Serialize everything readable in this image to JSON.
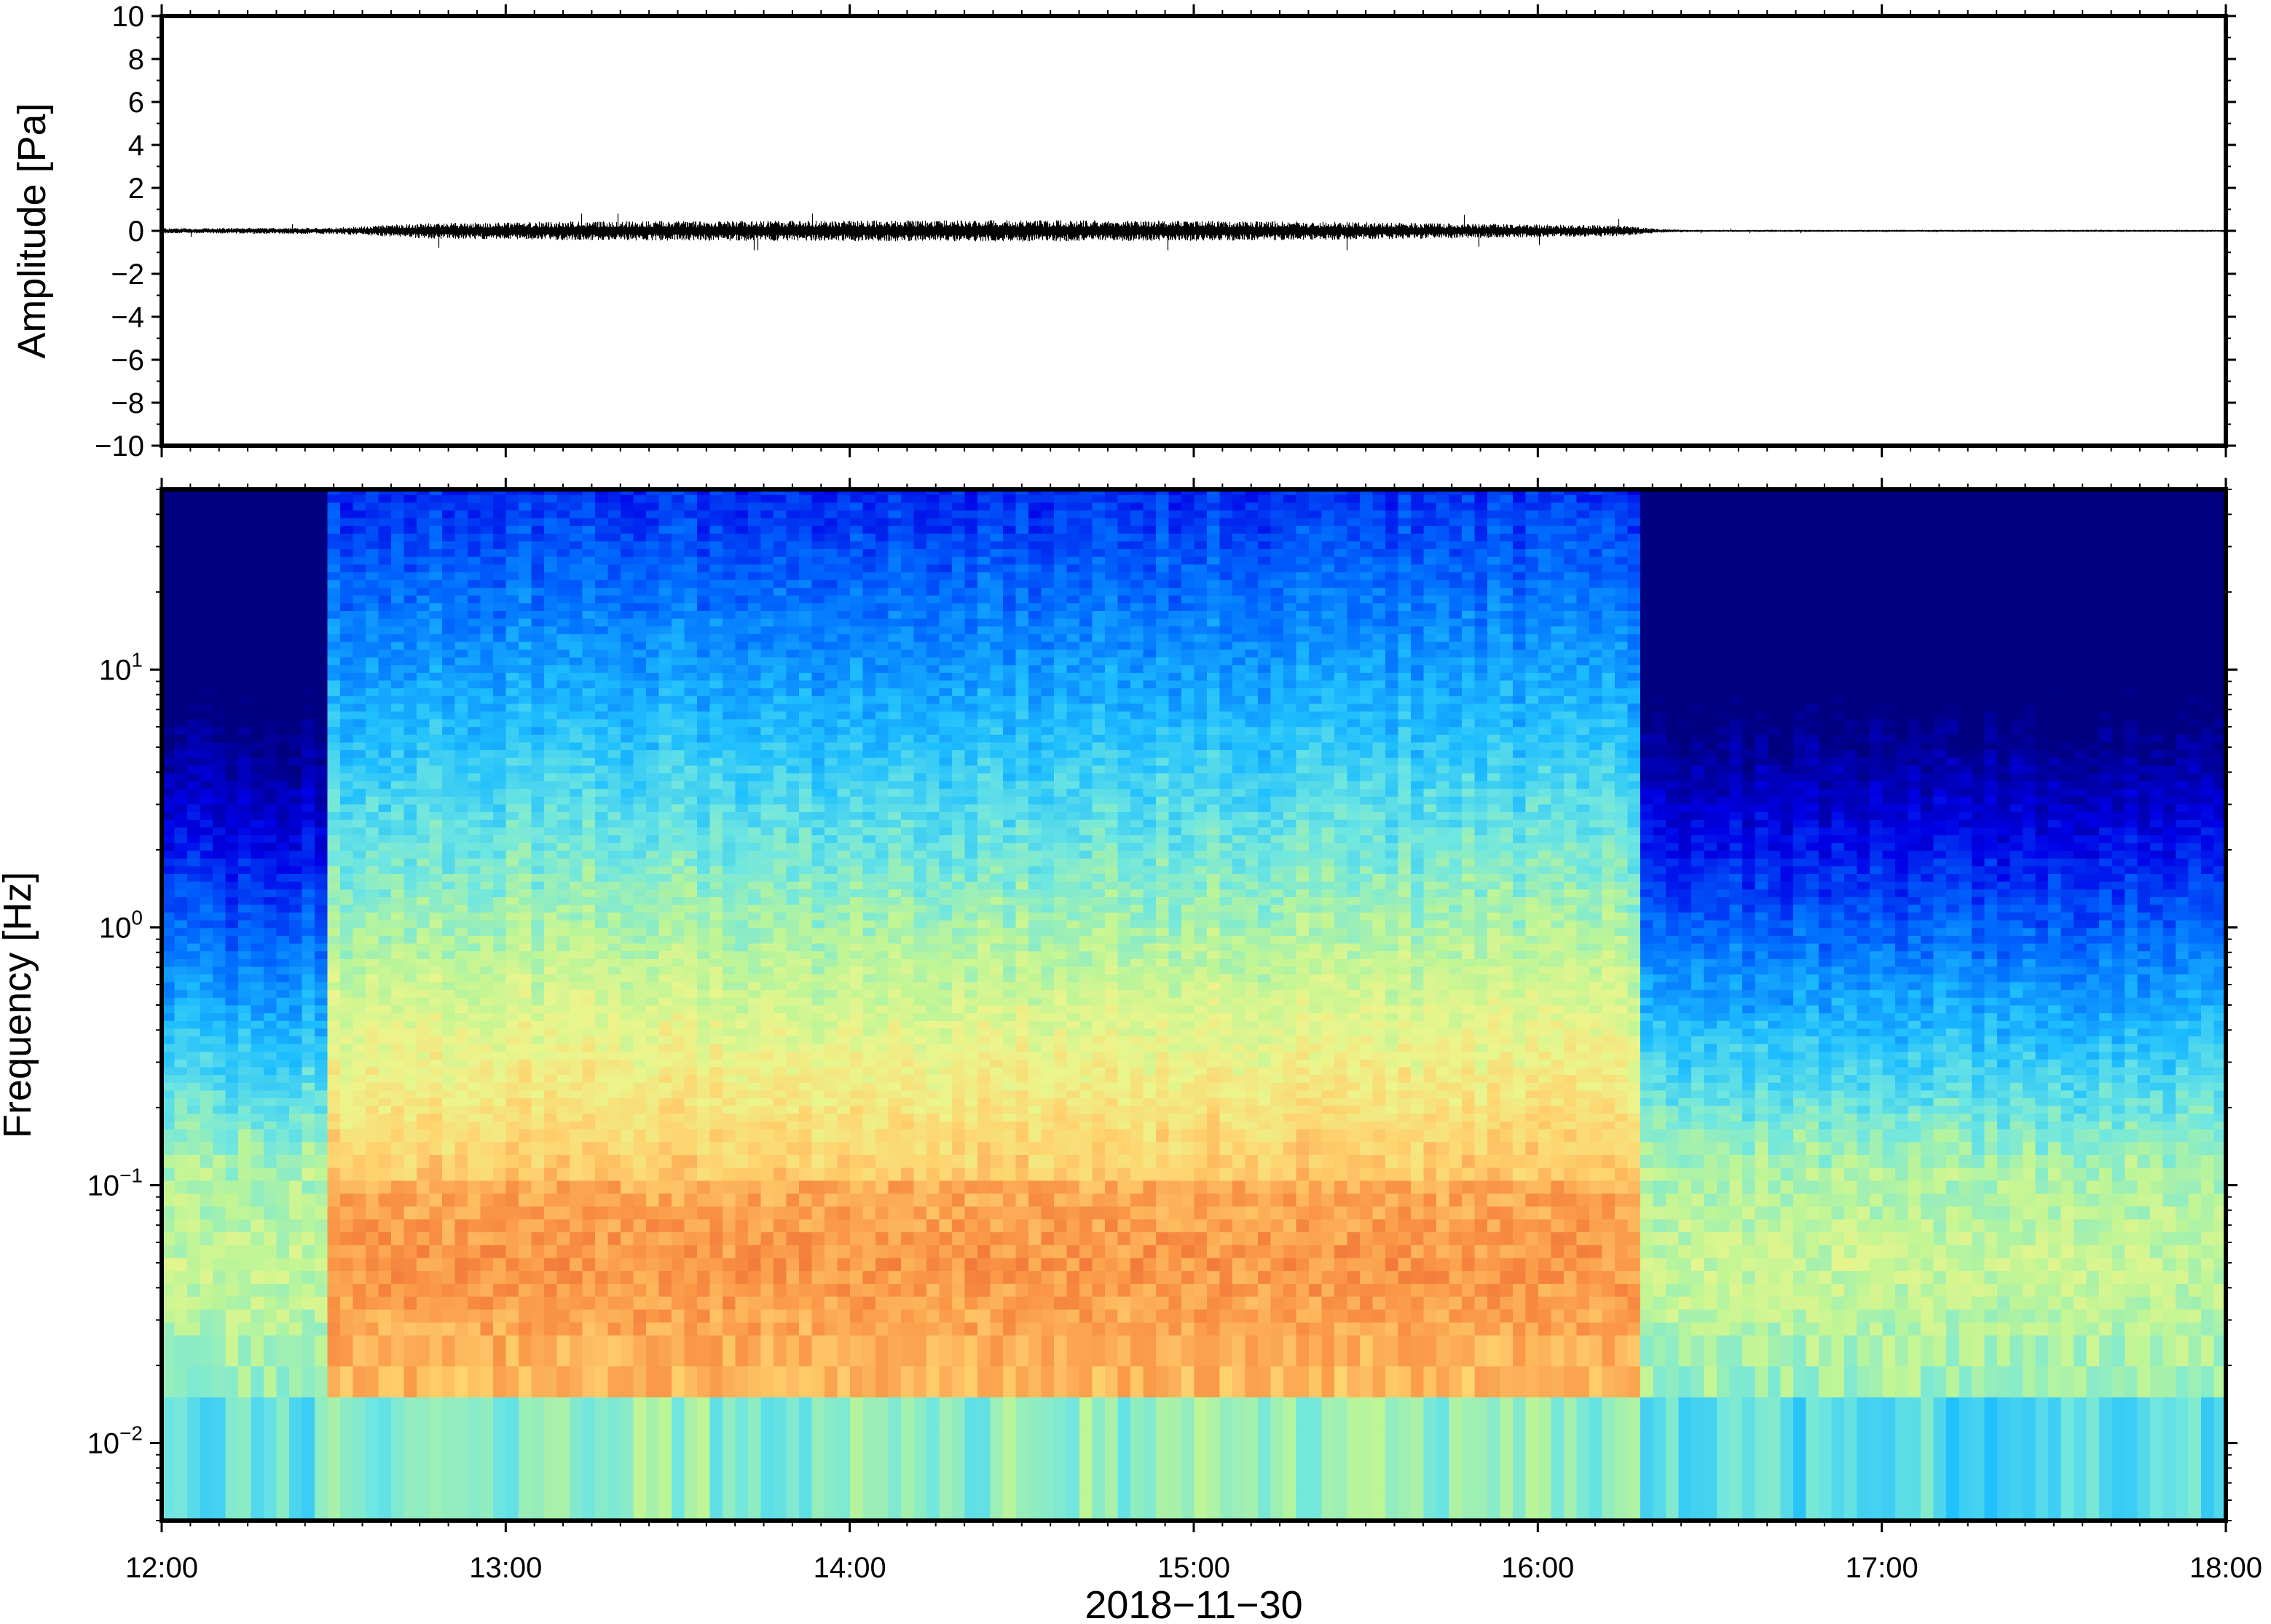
{
  "chart_data": [
    {
      "type": "line",
      "panel": "top",
      "title": "",
      "ylabel": "Amplitude [Pa]",
      "ylim": [
        -10,
        10
      ],
      "yticks": [
        10,
        8,
        6,
        4,
        2,
        0,
        -2,
        -4,
        -6,
        -8,
        -10
      ],
      "ytick_labels": [
        "10",
        "8",
        "6",
        "4",
        "2",
        "0",
        "−2",
        "−4",
        "−6",
        "−8",
        "−10"
      ],
      "x_range": [
        "12:00",
        "18:00"
      ],
      "series": [
        {
          "color": "#000000",
          "envelope_time_hours": [
            12.0,
            12.5,
            12.75,
            13.25,
            14.5,
            15.25,
            16.25,
            16.35,
            16.45,
            18.0
          ],
          "envelope_amplitude_pa": [
            0.12,
            0.15,
            0.35,
            0.45,
            0.5,
            0.45,
            0.25,
            0.08,
            0.05,
            0.05
          ],
          "peak_max_pa": 0.8,
          "peak_min_pa": -0.9
        }
      ]
    },
    {
      "type": "heatmap",
      "panel": "bottom",
      "ylabel": "Frequency [Hz]",
      "xlabel": "2018−11−30",
      "y_scale": "log",
      "ylim": [
        0.005,
        50
      ],
      "yticks": [
        {
          "value": 10,
          "base": "10",
          "exp": "1"
        },
        {
          "value": 1,
          "base": "10",
          "exp": "0"
        },
        {
          "value": 0.1,
          "base": "10",
          "exp": "−1"
        },
        {
          "value": 0.01,
          "base": "10",
          "exp": "−2"
        }
      ],
      "xticks": [
        "12:00",
        "13:00",
        "14:00",
        "15:00",
        "16:00",
        "17:00",
        "18:00"
      ],
      "colormap": "jet",
      "colors": {
        "low": "#000080",
        "mid": "#e8f28a",
        "high": "#f58a3a"
      },
      "active_period": [
        "12:30",
        "16:18"
      ],
      "peak_band_hz": [
        0.03,
        0.1
      ]
    }
  ]
}
